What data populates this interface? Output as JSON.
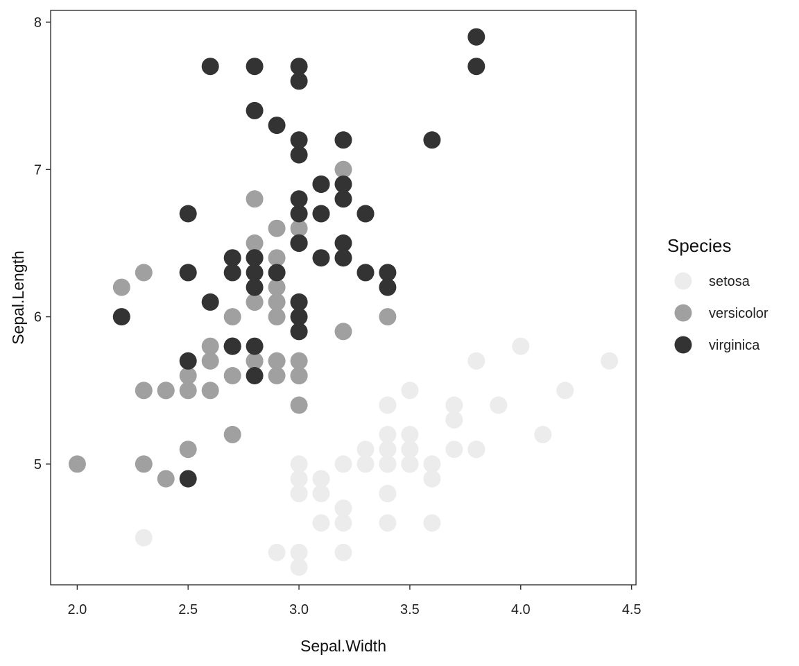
{
  "chart_data": {
    "type": "scatter",
    "xlabel": "Sepal.Width",
    "ylabel": "Sepal.Length",
    "xlim": [
      1.88,
      4.52
    ],
    "ylim": [
      4.18,
      8.08
    ],
    "x_ticks": [
      "2.0",
      "2.5",
      "3.0",
      "3.5",
      "4.0",
      "4.5"
    ],
    "y_ticks": [
      "5",
      "6",
      "7",
      "8"
    ],
    "grid": false,
    "legend_title": "Species",
    "legend_position": "right",
    "series": [
      {
        "name": "setosa",
        "color": "#ececec",
        "points": [
          [
            3.5,
            5.1
          ],
          [
            3.0,
            4.9
          ],
          [
            3.2,
            4.7
          ],
          [
            3.1,
            4.6
          ],
          [
            3.6,
            5.0
          ],
          [
            3.9,
            5.4
          ],
          [
            3.4,
            4.6
          ],
          [
            3.4,
            5.0
          ],
          [
            2.9,
            4.4
          ],
          [
            3.1,
            4.9
          ],
          [
            3.7,
            5.4
          ],
          [
            3.4,
            4.8
          ],
          [
            3.0,
            4.8
          ],
          [
            3.0,
            4.3
          ],
          [
            4.0,
            5.8
          ],
          [
            4.4,
            5.7
          ],
          [
            3.9,
            5.4
          ],
          [
            3.5,
            5.1
          ],
          [
            3.8,
            5.7
          ],
          [
            3.8,
            5.1
          ],
          [
            3.4,
            5.4
          ],
          [
            3.7,
            5.1
          ],
          [
            3.6,
            4.6
          ],
          [
            3.3,
            5.1
          ],
          [
            3.4,
            4.8
          ],
          [
            3.0,
            5.0
          ],
          [
            3.4,
            5.0
          ],
          [
            3.5,
            5.2
          ],
          [
            3.4,
            5.2
          ],
          [
            3.2,
            4.7
          ],
          [
            3.1,
            4.8
          ],
          [
            3.4,
            5.4
          ],
          [
            4.1,
            5.2
          ],
          [
            4.2,
            5.5
          ],
          [
            3.1,
            4.9
          ],
          [
            3.2,
            5.0
          ],
          [
            3.5,
            5.5
          ],
          [
            3.6,
            4.9
          ],
          [
            3.0,
            4.4
          ],
          [
            3.4,
            5.1
          ],
          [
            3.5,
            5.0
          ],
          [
            2.3,
            4.5
          ],
          [
            3.2,
            4.4
          ],
          [
            3.5,
            5.0
          ],
          [
            3.8,
            5.1
          ],
          [
            3.0,
            4.8
          ],
          [
            3.8,
            5.1
          ],
          [
            3.2,
            4.6
          ],
          [
            3.7,
            5.3
          ],
          [
            3.3,
            5.0
          ]
        ]
      },
      {
        "name": "versicolor",
        "color": "#a0a0a0",
        "points": [
          [
            3.2,
            7.0
          ],
          [
            3.2,
            6.4
          ],
          [
            3.1,
            6.9
          ],
          [
            2.3,
            5.5
          ],
          [
            2.8,
            6.5
          ],
          [
            2.8,
            5.7
          ],
          [
            3.3,
            6.3
          ],
          [
            2.4,
            4.9
          ],
          [
            2.9,
            6.6
          ],
          [
            2.7,
            5.2
          ],
          [
            2.0,
            5.0
          ],
          [
            3.0,
            5.9
          ],
          [
            2.2,
            6.0
          ],
          [
            2.9,
            6.1
          ],
          [
            2.9,
            5.6
          ],
          [
            3.1,
            6.7
          ],
          [
            3.0,
            5.6
          ],
          [
            2.7,
            5.8
          ],
          [
            2.2,
            6.2
          ],
          [
            2.5,
            5.6
          ],
          [
            3.2,
            5.9
          ],
          [
            2.8,
            6.1
          ],
          [
            2.5,
            6.3
          ],
          [
            2.8,
            6.1
          ],
          [
            2.9,
            6.4
          ],
          [
            3.0,
            6.6
          ],
          [
            2.8,
            6.8
          ],
          [
            3.0,
            6.7
          ],
          [
            2.9,
            6.0
          ],
          [
            2.6,
            5.7
          ],
          [
            2.4,
            5.5
          ],
          [
            2.4,
            5.5
          ],
          [
            2.7,
            5.8
          ],
          [
            2.7,
            6.0
          ],
          [
            3.0,
            5.4
          ],
          [
            3.4,
            6.0
          ],
          [
            3.1,
            6.7
          ],
          [
            2.3,
            6.3
          ],
          [
            3.0,
            5.6
          ],
          [
            2.5,
            5.5
          ],
          [
            2.6,
            5.5
          ],
          [
            3.0,
            6.1
          ],
          [
            2.6,
            5.8
          ],
          [
            2.3,
            5.0
          ],
          [
            2.7,
            5.6
          ],
          [
            3.0,
            5.7
          ],
          [
            2.9,
            5.7
          ],
          [
            2.9,
            6.2
          ],
          [
            2.5,
            5.1
          ],
          [
            2.8,
            5.7
          ]
        ]
      },
      {
        "name": "virginica",
        "color": "#333333",
        "points": [
          [
            3.3,
            6.3
          ],
          [
            2.7,
            5.8
          ],
          [
            3.0,
            7.1
          ],
          [
            2.9,
            6.3
          ],
          [
            3.0,
            6.5
          ],
          [
            3.0,
            7.6
          ],
          [
            2.5,
            4.9
          ],
          [
            2.9,
            7.3
          ],
          [
            2.5,
            6.7
          ],
          [
            3.6,
            7.2
          ],
          [
            3.2,
            6.5
          ],
          [
            2.7,
            6.4
          ],
          [
            3.0,
            6.8
          ],
          [
            2.5,
            5.7
          ],
          [
            2.8,
            5.8
          ],
          [
            3.2,
            6.4
          ],
          [
            3.0,
            6.5
          ],
          [
            3.8,
            7.7
          ],
          [
            2.6,
            7.7
          ],
          [
            2.2,
            6.0
          ],
          [
            3.2,
            6.9
          ],
          [
            2.8,
            5.6
          ],
          [
            2.8,
            7.7
          ],
          [
            2.7,
            6.3
          ],
          [
            3.3,
            6.7
          ],
          [
            3.2,
            7.2
          ],
          [
            2.8,
            6.2
          ],
          [
            3.0,
            6.1
          ],
          [
            2.8,
            6.4
          ],
          [
            3.0,
            7.2
          ],
          [
            2.8,
            7.4
          ],
          [
            3.8,
            7.9
          ],
          [
            2.8,
            6.4
          ],
          [
            2.8,
            6.3
          ],
          [
            2.6,
            6.1
          ],
          [
            3.0,
            7.7
          ],
          [
            3.4,
            6.3
          ],
          [
            3.1,
            6.4
          ],
          [
            3.0,
            6.0
          ],
          [
            3.1,
            6.9
          ],
          [
            3.1,
            6.7
          ],
          [
            3.1,
            6.9
          ],
          [
            2.7,
            5.8
          ],
          [
            3.2,
            6.8
          ],
          [
            3.3,
            6.7
          ],
          [
            3.0,
            6.7
          ],
          [
            2.5,
            6.3
          ],
          [
            3.0,
            6.5
          ],
          [
            3.4,
            6.2
          ],
          [
            3.0,
            5.9
          ]
        ]
      }
    ]
  }
}
